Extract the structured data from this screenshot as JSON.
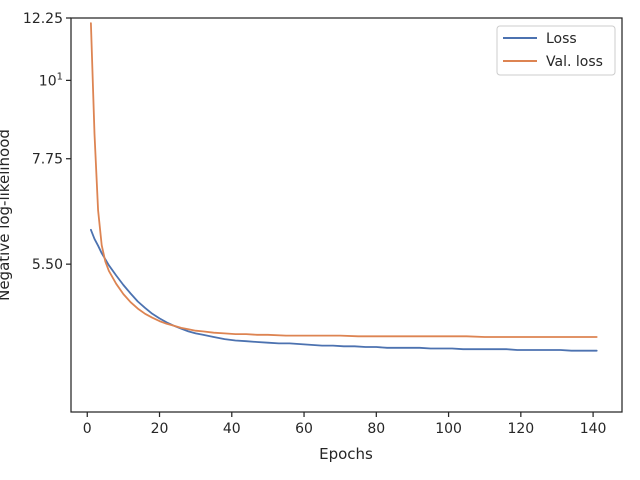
{
  "chart_data": {
    "type": "line",
    "xlabel": "Epochs",
    "ylabel": "Negative log-likelihood",
    "xlim": [
      -4.5,
      148
    ],
    "ylim": [
      3.4,
      12.25
    ],
    "y_scale": "log",
    "x_ticks": [
      0,
      20,
      40,
      60,
      80,
      100,
      120,
      140
    ],
    "y_ticks": [
      {
        "value": 12.25,
        "label": "12.25"
      },
      {
        "value": 10,
        "label": "10",
        "sup": "1"
      },
      {
        "value": 7.75,
        "label": "7.75"
      },
      {
        "value": 5.5,
        "label": "5.50"
      }
    ],
    "grid": false,
    "legend": "upper right",
    "series": [
      {
        "name": "Loss",
        "color": "#4c72b0",
        "x": [
          1,
          2,
          3,
          4,
          5,
          6,
          8,
          10,
          12,
          14,
          16,
          18,
          20,
          22,
          24,
          26,
          28,
          30,
          32,
          35,
          38,
          41,
          44,
          47,
          50,
          53,
          56,
          59,
          62,
          65,
          68,
          71,
          74,
          77,
          80,
          83,
          86,
          89,
          92,
          95,
          98,
          101,
          104,
          107,
          110,
          113,
          116,
          119,
          122,
          125,
          128,
          131,
          134,
          137,
          141
        ],
        "y": [
          6.15,
          5.97,
          5.84,
          5.7,
          5.59,
          5.48,
          5.3,
          5.14,
          5.0,
          4.87,
          4.77,
          4.68,
          4.61,
          4.55,
          4.5,
          4.46,
          4.42,
          4.39,
          4.37,
          4.34,
          4.31,
          4.29,
          4.28,
          4.27,
          4.26,
          4.25,
          4.25,
          4.24,
          4.23,
          4.22,
          4.22,
          4.21,
          4.21,
          4.2,
          4.2,
          4.19,
          4.19,
          4.19,
          4.19,
          4.18,
          4.18,
          4.18,
          4.17,
          4.17,
          4.17,
          4.17,
          4.17,
          4.16,
          4.16,
          4.16,
          4.16,
          4.16,
          4.15,
          4.15,
          4.15
        ]
      },
      {
        "name": "Val. loss",
        "color": "#dd8452",
        "x": [
          1,
          2,
          3,
          4,
          5,
          6,
          8,
          10,
          12,
          14,
          16,
          18,
          20,
          22,
          24,
          26,
          28,
          30,
          32,
          35,
          38,
          41,
          44,
          47,
          50,
          55,
          60,
          65,
          70,
          75,
          80,
          85,
          90,
          95,
          100,
          105,
          110,
          115,
          120,
          125,
          130,
          135,
          141
        ],
        "y": [
          12.05,
          8.4,
          6.55,
          5.85,
          5.55,
          5.38,
          5.16,
          4.99,
          4.86,
          4.76,
          4.68,
          4.62,
          4.57,
          4.53,
          4.5,
          4.47,
          4.45,
          4.43,
          4.42,
          4.4,
          4.39,
          4.38,
          4.38,
          4.37,
          4.37,
          4.36,
          4.36,
          4.36,
          4.36,
          4.35,
          4.35,
          4.35,
          4.35,
          4.35,
          4.35,
          4.35,
          4.34,
          4.34,
          4.34,
          4.34,
          4.34,
          4.34,
          4.34
        ]
      }
    ]
  }
}
